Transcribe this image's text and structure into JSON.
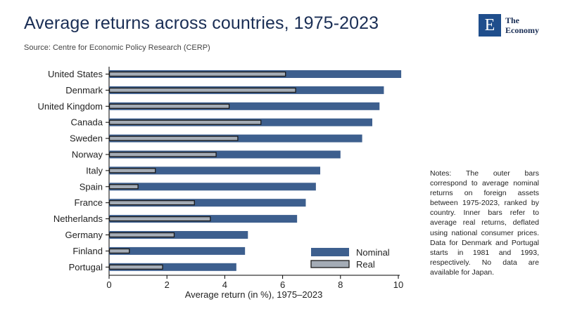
{
  "header": {
    "title": "Average returns across countries, 1975-2023",
    "source": "Source: Centre for Economic Policy Research (CERP)"
  },
  "logo": {
    "letter": "E",
    "line1": "The",
    "line2": "Economy"
  },
  "notes": "Notes: The outer bars correspond to average nominal returns on foreign assets between 1975-2023, ranked by country. Inner bars refer to average real returns, deflated using national consumer prices. Data for Denmark and Portugal starts in 1981 and 1993, respectively. No data are available for Japan.",
  "colors": {
    "nominal": "#3d5f8e",
    "real": "#a4acb6",
    "outline": "#1a1a1a"
  },
  "chart_data": {
    "type": "bar",
    "orientation": "horizontal",
    "categories": [
      "United States",
      "Denmark",
      "United Kingdom",
      "Canada",
      "Sweden",
      "Norway",
      "Italy",
      "Spain",
      "France",
      "Netherlands",
      "Germany",
      "Finland",
      "Portugal"
    ],
    "series": [
      {
        "name": "Nominal",
        "values": [
          10.1,
          9.5,
          9.35,
          9.1,
          8.75,
          8.0,
          7.3,
          7.15,
          6.8,
          6.5,
          4.8,
          4.7,
          4.4
        ]
      },
      {
        "name": "Real",
        "values": [
          6.1,
          6.45,
          4.15,
          5.25,
          4.45,
          3.7,
          1.6,
          1.0,
          2.95,
          3.5,
          2.25,
          0.7,
          1.85
        ]
      }
    ],
    "xlabel": "Average return (in %), 1975–2023",
    "xlim": [
      0,
      10
    ],
    "xticks": [
      "0",
      "2",
      "4",
      "6",
      "8",
      "10"
    ],
    "legend_position": "bottom-right",
    "grid": false
  }
}
